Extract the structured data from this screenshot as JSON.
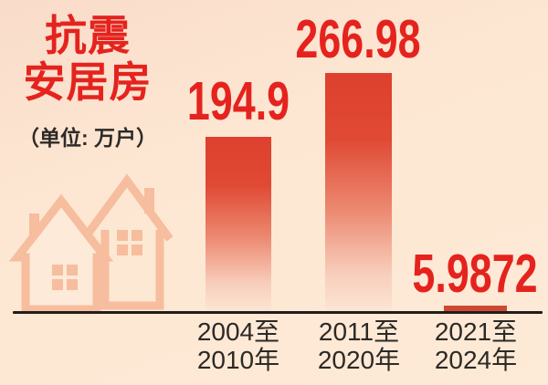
{
  "header": {
    "title_line1": "抗震",
    "title_line2": "安居房",
    "unit_label": "（单位: 万户）"
  },
  "chart_data": {
    "type": "bar",
    "title": "抗震安居房",
    "ylabel": "万户",
    "categories": [
      "2004至2010年",
      "2011至2020年",
      "2021至2024年"
    ],
    "values": [
      194.9,
      266.98,
      5.9872
    ],
    "ylim": [
      0,
      280
    ],
    "grid": false,
    "legend": false,
    "bars": [
      {
        "value_label": "194.9",
        "label_line1": "2004至",
        "label_line2": "2010年"
      },
      {
        "value_label": "266.98",
        "label_line1": "2011至",
        "label_line2": "2020年"
      },
      {
        "value_label": "5.9872",
        "label_line1": "2021至",
        "label_line2": "2024年"
      }
    ]
  },
  "colors": {
    "accent_red": "#e5231e",
    "bar_top": "#de402e",
    "bar_fade": "#fce5d3",
    "background_top": "#f9dcca",
    "background_bottom": "#fdead7",
    "axis": "#231d18",
    "text_dark": "#2c2926",
    "house_outline": "#f6bd9e"
  }
}
